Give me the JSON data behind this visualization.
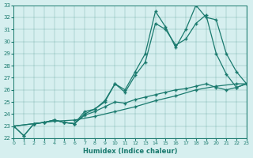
{
  "xlabel": "Humidex (Indice chaleur)",
  "bg_color": "#d6efef",
  "line_color": "#1a7a6e",
  "ylim": [
    22,
    33
  ],
  "xlim": [
    0,
    23
  ],
  "yticks": [
    22,
    23,
    24,
    25,
    26,
    27,
    28,
    29,
    30,
    31,
    32,
    33
  ],
  "xticks": [
    0,
    1,
    2,
    3,
    4,
    5,
    6,
    7,
    8,
    9,
    10,
    11,
    12,
    13,
    14,
    15,
    16,
    17,
    18,
    19,
    20,
    21,
    22,
    23
  ],
  "line_straight_x": [
    0,
    2,
    4,
    6,
    8,
    10,
    12,
    14,
    16,
    18,
    20,
    22,
    23
  ],
  "line_straight_y": [
    23.0,
    23.2,
    23.4,
    23.5,
    23.8,
    24.2,
    24.6,
    25.1,
    25.5,
    26.0,
    26.3,
    26.5,
    26.5
  ],
  "line_zigzag_low_x": [
    0,
    1,
    2,
    3,
    4,
    5,
    6,
    7,
    8,
    9,
    10,
    11,
    12,
    13,
    14,
    15,
    16,
    17,
    18,
    19,
    20,
    21,
    22,
    23
  ],
  "line_zigzag_low_y": [
    23.0,
    22.2,
    23.2,
    23.3,
    23.5,
    23.3,
    23.2,
    23.9,
    24.2,
    24.6,
    25.0,
    24.9,
    25.2,
    25.4,
    25.6,
    25.8,
    26.0,
    26.1,
    26.3,
    26.5,
    26.2,
    26.0,
    26.2,
    26.5
  ],
  "line_zigzag_mid_x": [
    0,
    1,
    2,
    3,
    4,
    5,
    6,
    7,
    8,
    9,
    10,
    11,
    12,
    13,
    14,
    15,
    16,
    17,
    18,
    19,
    20,
    21,
    22,
    23
  ],
  "line_zigzag_mid_y": [
    23.0,
    22.2,
    23.2,
    23.3,
    23.5,
    23.3,
    23.2,
    24.0,
    24.4,
    25.0,
    26.5,
    25.8,
    27.2,
    28.3,
    31.5,
    31.0,
    29.7,
    30.2,
    31.5,
    32.2,
    29.0,
    27.3,
    26.2,
    26.5
  ],
  "line_zigzag_top_x": [
    0,
    2,
    3,
    4,
    5,
    6,
    7,
    8,
    9,
    10,
    11,
    12,
    13,
    14,
    15,
    16,
    17,
    18,
    19,
    20,
    21,
    22,
    23
  ],
  "line_zigzag_top_y": [
    23.0,
    23.2,
    23.3,
    23.5,
    23.3,
    23.2,
    24.2,
    24.4,
    25.1,
    26.5,
    26.0,
    27.5,
    29.0,
    32.5,
    31.2,
    29.5,
    31.0,
    33.0,
    32.0,
    31.8,
    29.0,
    27.5,
    26.5
  ]
}
